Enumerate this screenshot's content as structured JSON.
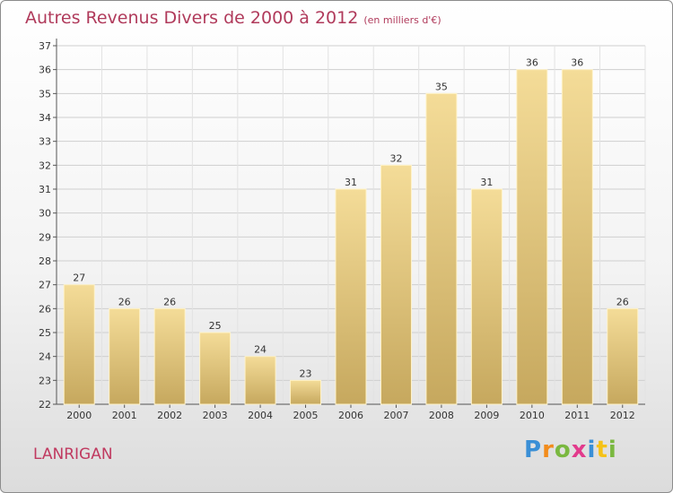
{
  "header": {
    "title": "Autres Revenus Divers de 2000 à 2012",
    "subtitle": "(en milliers d'€)"
  },
  "location": "LANRIGAN",
  "logo": {
    "letters": [
      "P",
      "r",
      "o",
      "x",
      "i",
      "t",
      "i"
    ],
    "colors": [
      "#3a8fd6",
      "#f28c1c",
      "#7ab840",
      "#e23b8c",
      "#3a8fd6",
      "#f5c218",
      "#7ab840"
    ]
  },
  "colors": {
    "bar_top": "#f4dc98",
    "bar_bottom": "#c6a85e",
    "title": "#b03a5b"
  },
  "chart_data": {
    "type": "bar",
    "title": "Autres Revenus Divers de 2000 à 2012",
    "subtitle": "(en milliers d'€)",
    "xlabel": "",
    "ylabel": "",
    "categories": [
      "2000",
      "2001",
      "2002",
      "2003",
      "2004",
      "2005",
      "2006",
      "2007",
      "2008",
      "2009",
      "2010",
      "2011",
      "2012"
    ],
    "values": [
      27,
      26,
      26,
      25,
      24,
      23,
      31,
      32,
      35,
      31,
      36,
      36,
      26
    ],
    "ylim": [
      22,
      37
    ],
    "yticks": [
      22,
      23,
      24,
      25,
      26,
      27,
      28,
      29,
      30,
      31,
      32,
      33,
      34,
      35,
      36,
      37
    ],
    "grid": true,
    "legend": "none"
  }
}
